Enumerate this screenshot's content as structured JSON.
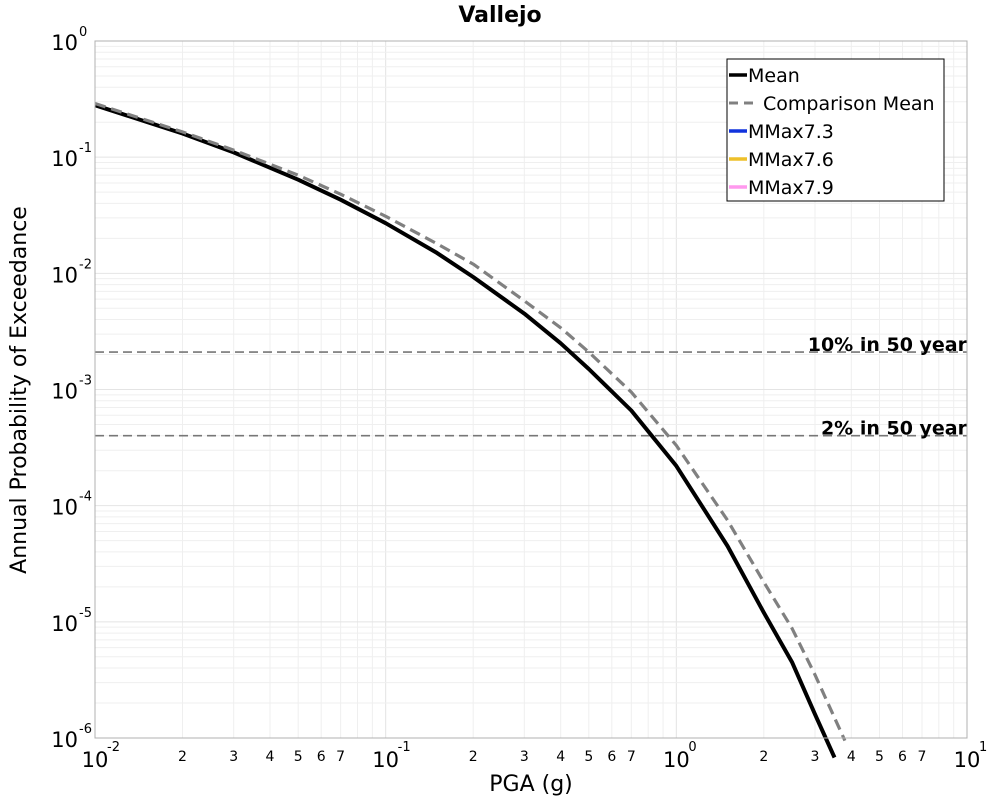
{
  "chart_data": {
    "type": "line",
    "title": "Vallejo",
    "xlabel": "PGA (g)",
    "ylabel": "Annual Probability of Exceedance",
    "xscale": "log",
    "yscale": "log",
    "xlim": [
      0.01,
      10
    ],
    "ylim": [
      1e-06,
      1
    ],
    "grid": true,
    "legend_position": "top-right",
    "x_major_ticks": [
      {
        "base": "10",
        "exp": "-2",
        "value": 0.01
      },
      {
        "base": "10",
        "exp": "-1",
        "value": 0.1
      },
      {
        "base": "10",
        "exp": "0",
        "value": 1
      },
      {
        "base": "10",
        "exp": "1",
        "value": 10
      }
    ],
    "x_minor_tick_labels": [
      "2",
      "3",
      "4",
      "5",
      "6",
      "7"
    ],
    "y_major_ticks": [
      {
        "base": "10",
        "exp": "0",
        "value": 1
      },
      {
        "base": "10",
        "exp": "-1",
        "value": 0.1
      },
      {
        "base": "10",
        "exp": "-2",
        "value": 0.01
      },
      {
        "base": "10",
        "exp": "-3",
        "value": 0.001
      },
      {
        "base": "10",
        "exp": "-4",
        "value": 0.0001
      },
      {
        "base": "10",
        "exp": "-5",
        "value": 1e-05
      },
      {
        "base": "10",
        "exp": "-6",
        "value": 1e-06
      }
    ],
    "reference_lines": [
      {
        "label": "10% in 50 year",
        "y": 0.0021
      },
      {
        "label": "2% in 50 year",
        "y": 0.0004
      }
    ],
    "series": [
      {
        "name": "Mean",
        "color": "#000000",
        "style": "solid",
        "x": [
          0.01,
          0.02,
          0.03,
          0.05,
          0.07,
          0.1,
          0.15,
          0.2,
          0.3,
          0.4,
          0.5,
          0.7,
          1.0,
          1.5,
          2.0,
          2.5,
          3.0,
          3.5
        ],
        "y": [
          0.28,
          0.16,
          0.11,
          0.064,
          0.043,
          0.027,
          0.015,
          0.0093,
          0.0045,
          0.0025,
          0.0015,
          0.00066,
          0.00022,
          4.5e-05,
          1.2e-05,
          4.5e-06,
          1.6e-06,
          6.8e-07
        ]
      },
      {
        "name": "Comparison Mean",
        "color": "#808080",
        "style": "dashed",
        "x": [
          0.01,
          0.02,
          0.03,
          0.05,
          0.07,
          0.1,
          0.15,
          0.2,
          0.3,
          0.4,
          0.5,
          0.7,
          1.0,
          1.5,
          2.0,
          2.5,
          3.0,
          3.8
        ],
        "y": [
          0.29,
          0.165,
          0.115,
          0.07,
          0.048,
          0.031,
          0.018,
          0.012,
          0.0058,
          0.0034,
          0.0021,
          0.00095,
          0.00033,
          7.5e-05,
          2.2e-05,
          8.8e-06,
          3.5e-06,
          9.5e-07
        ]
      },
      {
        "name": "MMax7.3",
        "color": "#1133dd",
        "style": "solid",
        "x": [],
        "y": []
      },
      {
        "name": "MMax7.6",
        "color": "#eec02a",
        "style": "solid",
        "x": [],
        "y": []
      },
      {
        "name": "MMax7.9",
        "color": "#ff99ee",
        "style": "solid",
        "x": [],
        "y": []
      }
    ]
  }
}
